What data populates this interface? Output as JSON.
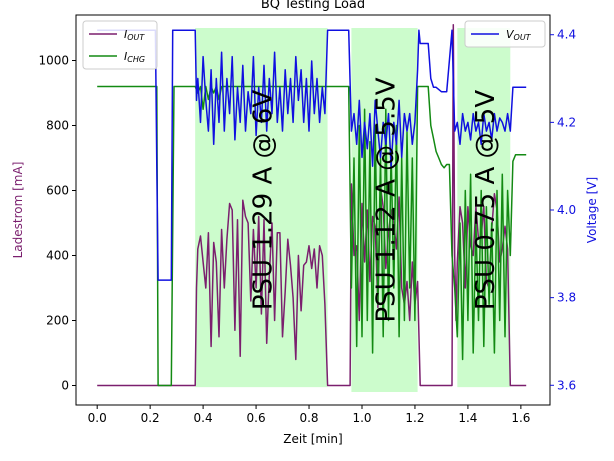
{
  "chart_data": {
    "type": "line",
    "title": "BQ Testing Load",
    "xlabel": "Zeit [min]",
    "ylabel_left": "Ladestrom [mA]",
    "ylabel_right": "Voltage [V]",
    "xlim": [
      -0.08,
      1.71
    ],
    "ylim_left": [
      -60,
      1140
    ],
    "ylim_right": [
      3.555,
      4.445
    ],
    "xticks": [
      "0.0",
      "0.2",
      "0.4",
      "0.6",
      "0.8",
      "1.0",
      "1.2",
      "1.4",
      "1.6"
    ],
    "xtick_values": [
      0.0,
      0.2,
      0.4,
      0.6,
      0.8,
      1.0,
      1.2,
      1.4,
      1.6
    ],
    "yticks_left": [
      "0",
      "200",
      "400",
      "600",
      "800",
      "1000"
    ],
    "ytick_values_left": [
      0,
      200,
      400,
      600,
      800,
      1000
    ],
    "yticks_right": [
      "3.6",
      "3.8",
      "4.0",
      "4.2",
      "4.4"
    ],
    "ytick_values_right": [
      3.6,
      3.8,
      4.0,
      4.2,
      4.4
    ],
    "regions": [
      {
        "label": "PSU 1.29 A @ 6V",
        "x0": 0.37,
        "x1": 0.87,
        "y0": -5,
        "y1": 1100,
        "color": "#ccfccc"
      },
      {
        "label": "PSU 1.12 A @ 5.5V",
        "x0": 0.96,
        "x1": 1.21,
        "y0": -20,
        "y1": 1100,
        "color": "#ccfccc"
      },
      {
        "label": "PSU 0.75 A @ 5V",
        "x0": 1.36,
        "x1": 1.56,
        "y0": -5,
        "y1": 1100,
        "color": "#ccfccc"
      }
    ],
    "legend_left": {
      "position": "top-left",
      "entries": [
        {
          "label_main": "I",
          "label_sub": "OUT",
          "color": "#7b1f6e"
        },
        {
          "label_main": "I",
          "label_sub": "CHG",
          "color": "#138a13"
        }
      ]
    },
    "legend_right": {
      "position": "top-right",
      "entries": [
        {
          "label_main": "V",
          "label_sub": "OUT",
          "color": "#1010e0"
        }
      ]
    },
    "series": [
      {
        "key": "iout",
        "axis": "left",
        "color": "#7b1f6e",
        "x": [
          0.0,
          0.22,
          0.225,
          0.28,
          0.285,
          0.37,
          0.375,
          0.38,
          0.39,
          0.4,
          0.41,
          0.42,
          0.43,
          0.44,
          0.45,
          0.46,
          0.47,
          0.48,
          0.49,
          0.5,
          0.51,
          0.52,
          0.53,
          0.54,
          0.55,
          0.56,
          0.57,
          0.58,
          0.59,
          0.6,
          0.61,
          0.62,
          0.63,
          0.64,
          0.65,
          0.66,
          0.67,
          0.68,
          0.69,
          0.7,
          0.71,
          0.72,
          0.73,
          0.74,
          0.75,
          0.76,
          0.77,
          0.78,
          0.79,
          0.8,
          0.81,
          0.82,
          0.83,
          0.84,
          0.85,
          0.86,
          0.87,
          0.95,
          0.955,
          0.96,
          0.97,
          0.98,
          0.99,
          1.0,
          1.01,
          1.02,
          1.03,
          1.04,
          1.05,
          1.06,
          1.07,
          1.08,
          1.09,
          1.1,
          1.11,
          1.12,
          1.13,
          1.14,
          1.15,
          1.16,
          1.17,
          1.18,
          1.19,
          1.2,
          1.21,
          1.22,
          1.34,
          1.345,
          1.35,
          1.355,
          1.36,
          1.37,
          1.38,
          1.39,
          1.4,
          1.41,
          1.42,
          1.43,
          1.44,
          1.45,
          1.46,
          1.47,
          1.48,
          1.49,
          1.5,
          1.51,
          1.52,
          1.53,
          1.54,
          1.55,
          1.56,
          1.57,
          1.62
        ],
        "values": [
          0,
          0,
          0,
          0,
          0,
          0,
          300,
          420,
          460,
          380,
          300,
          470,
          120,
          440,
          380,
          150,
          480,
          300,
          450,
          560,
          540,
          170,
          510,
          90,
          570,
          520,
          500,
          260,
          480,
          300,
          520,
          220,
          510,
          130,
          340,
          500,
          200,
          470,
          470,
          150,
          290,
          450,
          370,
          270,
          80,
          400,
          230,
          370,
          380,
          430,
          360,
          420,
          300,
          430,
          400,
          250,
          0,
          0,
          0,
          620,
          400,
          430,
          200,
          560,
          380,
          540,
          320,
          520,
          490,
          240,
          610,
          550,
          360,
          470,
          540,
          500,
          420,
          580,
          300,
          250,
          320,
          200,
          380,
          250,
          320,
          0,
          0,
          1110,
          400,
          200,
          380,
          550,
          500,
          300,
          550,
          430,
          400,
          550,
          450,
          460,
          550,
          320,
          300,
          480,
          590,
          540,
          380,
          420,
          490,
          420,
          0,
          0,
          0
        ]
      },
      {
        "key": "ichg",
        "axis": "left",
        "color": "#138a13",
        "x": [
          0.0,
          0.2,
          0.21,
          0.215,
          0.22,
          0.225,
          0.23,
          0.27,
          0.28,
          0.29,
          0.37,
          0.38,
          0.39,
          0.4,
          0.41,
          0.42,
          0.43,
          0.44,
          0.45,
          0.46,
          0.47,
          0.48,
          0.49,
          0.5,
          0.6,
          0.7,
          0.8,
          0.9,
          0.95,
          0.96,
          0.97,
          0.98,
          0.99,
          1.0,
          1.01,
          1.02,
          1.03,
          1.04,
          1.05,
          1.06,
          1.07,
          1.08,
          1.09,
          1.1,
          1.11,
          1.12,
          1.13,
          1.14,
          1.15,
          1.16,
          1.17,
          1.18,
          1.19,
          1.2,
          1.21,
          1.22,
          1.25,
          1.26,
          1.27,
          1.28,
          1.29,
          1.3,
          1.31,
          1.32,
          1.33,
          1.34,
          1.35,
          1.36,
          1.37,
          1.38,
          1.39,
          1.4,
          1.41,
          1.42,
          1.43,
          1.44,
          1.45,
          1.46,
          1.47,
          1.48,
          1.49,
          1.5,
          1.51,
          1.52,
          1.53,
          1.54,
          1.55,
          1.56,
          1.57,
          1.58,
          1.62
        ],
        "values": [
          920,
          920,
          920,
          920,
          920,
          920,
          0,
          0,
          0,
          920,
          920,
          900,
          920,
          850,
          920,
          880,
          920,
          900,
          920,
          880,
          920,
          920,
          920,
          920,
          920,
          920,
          920,
          920,
          920,
          300,
          700,
          120,
          800,
          150,
          850,
          200,
          750,
          100,
          800,
          250,
          700,
          150,
          850,
          200,
          720,
          300,
          800,
          150,
          700,
          200,
          780,
          300,
          700,
          200,
          920,
          920,
          920,
          800,
          760,
          720,
          700,
          680,
          670,
          680,
          680,
          400,
          300,
          150,
          500,
          80,
          600,
          200,
          650,
          100,
          500,
          200,
          600,
          120,
          550,
          250,
          500,
          100,
          600,
          200,
          650,
          150,
          600,
          400,
          690,
          710,
          710
        ]
      },
      {
        "key": "vout",
        "axis": "right",
        "color": "#1010e0",
        "x": [
          0.0,
          0.2,
          0.22,
          0.225,
          0.23,
          0.28,
          0.285,
          0.29,
          0.37,
          0.375,
          0.38,
          0.39,
          0.4,
          0.41,
          0.42,
          0.43,
          0.44,
          0.45,
          0.46,
          0.47,
          0.48,
          0.49,
          0.5,
          0.51,
          0.52,
          0.53,
          0.54,
          0.55,
          0.56,
          0.57,
          0.58,
          0.59,
          0.6,
          0.61,
          0.62,
          0.63,
          0.64,
          0.65,
          0.66,
          0.67,
          0.68,
          0.69,
          0.7,
          0.71,
          0.72,
          0.73,
          0.74,
          0.75,
          0.76,
          0.77,
          0.78,
          0.79,
          0.8,
          0.81,
          0.82,
          0.83,
          0.84,
          0.85,
          0.86,
          0.87,
          0.9,
          0.95,
          0.96,
          0.97,
          0.98,
          0.99,
          1.0,
          1.01,
          1.02,
          1.03,
          1.04,
          1.05,
          1.06,
          1.07,
          1.08,
          1.09,
          1.1,
          1.11,
          1.12,
          1.13,
          1.14,
          1.15,
          1.16,
          1.17,
          1.18,
          1.19,
          1.2,
          1.21,
          1.215,
          1.22,
          1.25,
          1.26,
          1.27,
          1.28,
          1.3,
          1.32,
          1.34,
          1.35,
          1.36,
          1.37,
          1.38,
          1.39,
          1.4,
          1.41,
          1.42,
          1.43,
          1.44,
          1.45,
          1.46,
          1.47,
          1.48,
          1.49,
          1.5,
          1.51,
          1.52,
          1.53,
          1.54,
          1.55,
          1.56,
          1.57,
          1.62
        ],
        "values": [
          4.41,
          4.41,
          4.41,
          4.1,
          3.84,
          3.84,
          4.41,
          4.41,
          4.41,
          4.25,
          4.3,
          4.2,
          4.35,
          4.25,
          4.18,
          4.32,
          4.15,
          4.3,
          4.2,
          4.36,
          4.18,
          4.3,
          4.22,
          4.35,
          4.16,
          4.28,
          4.2,
          4.33,
          4.18,
          4.27,
          4.22,
          4.35,
          4.17,
          4.28,
          4.2,
          4.33,
          4.18,
          4.3,
          4.22,
          4.36,
          4.2,
          4.28,
          4.18,
          4.32,
          4.22,
          4.3,
          4.2,
          4.35,
          4.25,
          4.32,
          4.2,
          4.3,
          4.18,
          4.34,
          4.22,
          4.3,
          4.2,
          4.28,
          4.22,
          4.41,
          4.41,
          4.41,
          4.18,
          4.22,
          4.15,
          4.25,
          4.12,
          4.2,
          4.14,
          4.22,
          4.1,
          4.25,
          4.18,
          4.12,
          4.2,
          4.15,
          4.22,
          4.1,
          4.2,
          4.15,
          4.25,
          4.12,
          4.22,
          4.18,
          4.22,
          4.15,
          4.2,
          4.32,
          4.41,
          4.38,
          4.38,
          4.3,
          4.28,
          4.28,
          4.27,
          4.27,
          4.41,
          4.18,
          4.2,
          4.15,
          4.22,
          4.18,
          4.2,
          4.16,
          4.22,
          4.18,
          4.2,
          4.15,
          4.22,
          4.18,
          4.2,
          4.16,
          4.22,
          4.18,
          4.21,
          4.2,
          4.18,
          4.22,
          4.18,
          4.28,
          4.28
        ]
      }
    ]
  }
}
